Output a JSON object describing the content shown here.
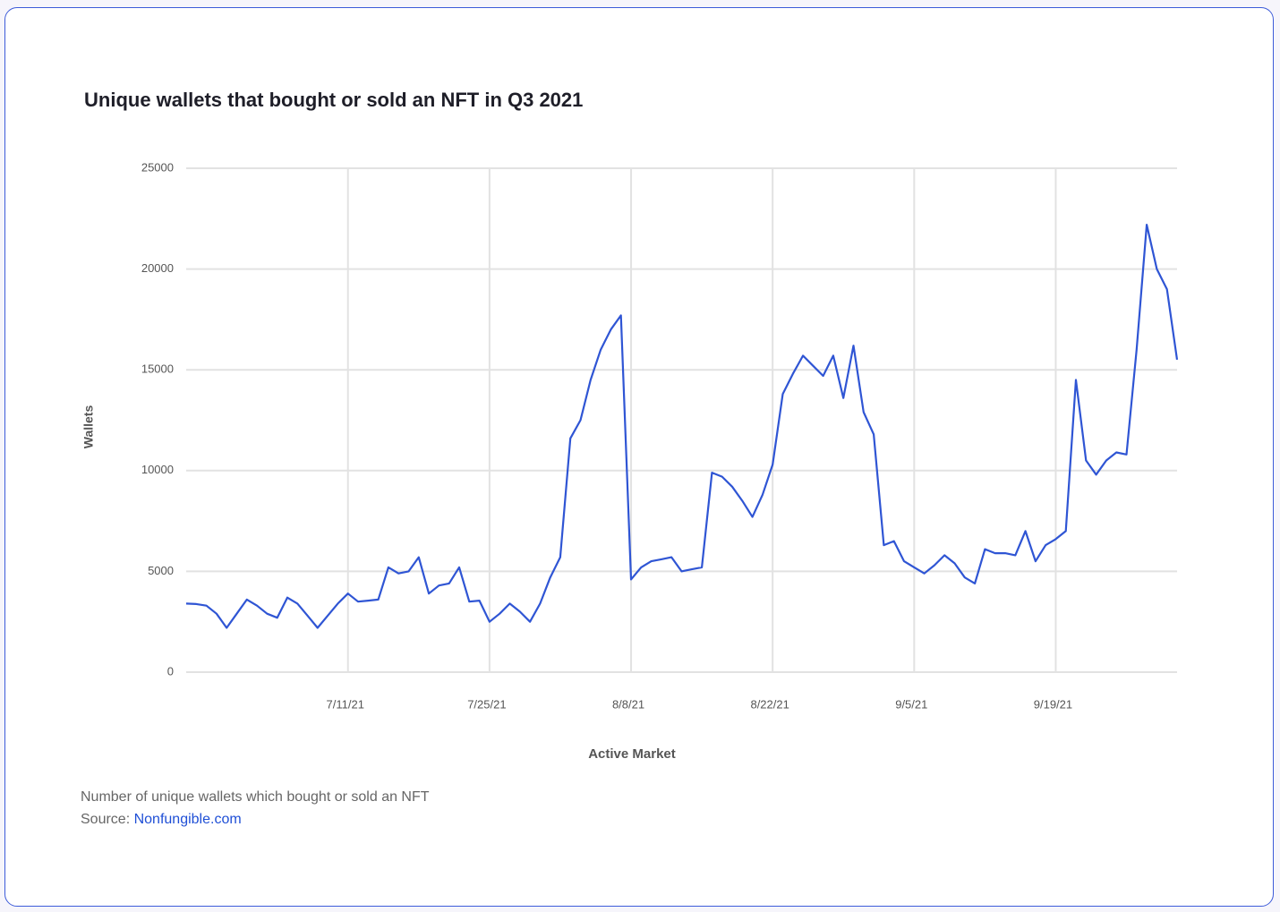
{
  "chart_data": {
    "type": "line",
    "title": "Unique wallets that bought or sold an NFT in Q3 2021",
    "x_label": "Active Market",
    "y_label": "Wallets",
    "x": [
      "6/25/21",
      "6/26/21",
      "6/27/21",
      "6/28/21",
      "6/29/21",
      "6/30/21",
      "7/1/21",
      "7/2/21",
      "7/3/21",
      "7/4/21",
      "7/5/21",
      "7/6/21",
      "7/7/21",
      "7/8/21",
      "7/9/21",
      "7/10/21",
      "7/11/21",
      "7/12/21",
      "7/13/21",
      "7/14/21",
      "7/15/21",
      "7/16/21",
      "7/17/21",
      "7/18/21",
      "7/19/21",
      "7/20/21",
      "7/21/21",
      "7/22/21",
      "7/23/21",
      "7/24/21",
      "7/25/21",
      "7/26/21",
      "7/27/21",
      "7/28/21",
      "7/29/21",
      "7/30/21",
      "7/31/21",
      "8/1/21",
      "8/2/21",
      "8/3/21",
      "8/4/21",
      "8/5/21",
      "8/6/21",
      "8/7/21",
      "8/8/21",
      "8/9/21",
      "8/10/21",
      "8/11/21",
      "8/12/21",
      "8/13/21",
      "8/14/21",
      "8/15/21",
      "8/16/21",
      "8/17/21",
      "8/18/21",
      "8/19/21",
      "8/20/21",
      "8/21/21",
      "8/22/21",
      "8/23/21",
      "8/24/21",
      "8/25/21",
      "8/26/21",
      "8/27/21",
      "8/28/21",
      "8/29/21",
      "8/30/21",
      "8/31/21",
      "9/1/21",
      "9/2/21",
      "9/3/21",
      "9/4/21",
      "9/5/21",
      "9/6/21",
      "9/7/21",
      "9/8/21",
      "9/9/21",
      "9/10/21",
      "9/11/21",
      "9/12/21",
      "9/13/21",
      "9/14/21",
      "9/15/21",
      "9/16/21",
      "9/17/21",
      "9/18/21",
      "9/19/21",
      "9/20/21",
      "9/21/21",
      "9/22/21",
      "9/23/21",
      "9/24/21",
      "9/25/21",
      "9/26/21",
      "9/27/21",
      "9/28/21",
      "9/29/21",
      "9/30/21",
      "10/1/21"
    ],
    "series": [
      {
        "name": "Wallets",
        "color": "#2f55d4",
        "values": [
          3400,
          3380,
          3300,
          2900,
          2200,
          2900,
          3600,
          3300,
          2900,
          2700,
          3700,
          3400,
          2800,
          2200,
          2800,
          3400,
          3900,
          3500,
          3550,
          3600,
          5200,
          4900,
          5000,
          5700,
          3900,
          4300,
          4400,
          5200,
          3500,
          3550,
          2500,
          2900,
          3400,
          3000,
          2500,
          3400,
          4700,
          5700,
          11600,
          12500,
          14500,
          16000,
          17000,
          17700,
          4600,
          5200,
          5500,
          5600,
          5700,
          5000,
          5100,
          5200,
          9900,
          9700,
          9200,
          8500,
          7700,
          8800,
          10300,
          13800,
          14800,
          15700,
          15200,
          14700,
          15700,
          13600,
          16200,
          12900,
          11800,
          6300,
          6500,
          5500,
          5200,
          4900,
          5300,
          5800,
          5400,
          4700,
          4400,
          6100,
          5900,
          5900,
          5800,
          7000,
          5500,
          6300,
          6600,
          7000,
          14500,
          10500,
          9800,
          10500,
          10900,
          10800,
          16000,
          22200,
          20000,
          19000,
          15500
        ]
      }
    ],
    "xlim": [
      "6/25/21",
      "10/1/21"
    ],
    "xticks": [
      "7/11/21",
      "7/25/21",
      "8/8/21",
      "8/22/21",
      "9/5/21",
      "9/19/21"
    ],
    "ylim": [
      0,
      25000
    ],
    "yticks": [
      0,
      5000,
      10000,
      15000,
      20000,
      25000
    ],
    "grid": true
  },
  "footer": {
    "caption": "Number of unique wallets which bought or sold an NFT",
    "source_label": "Source:",
    "source_link": "Nonfungible.com"
  }
}
